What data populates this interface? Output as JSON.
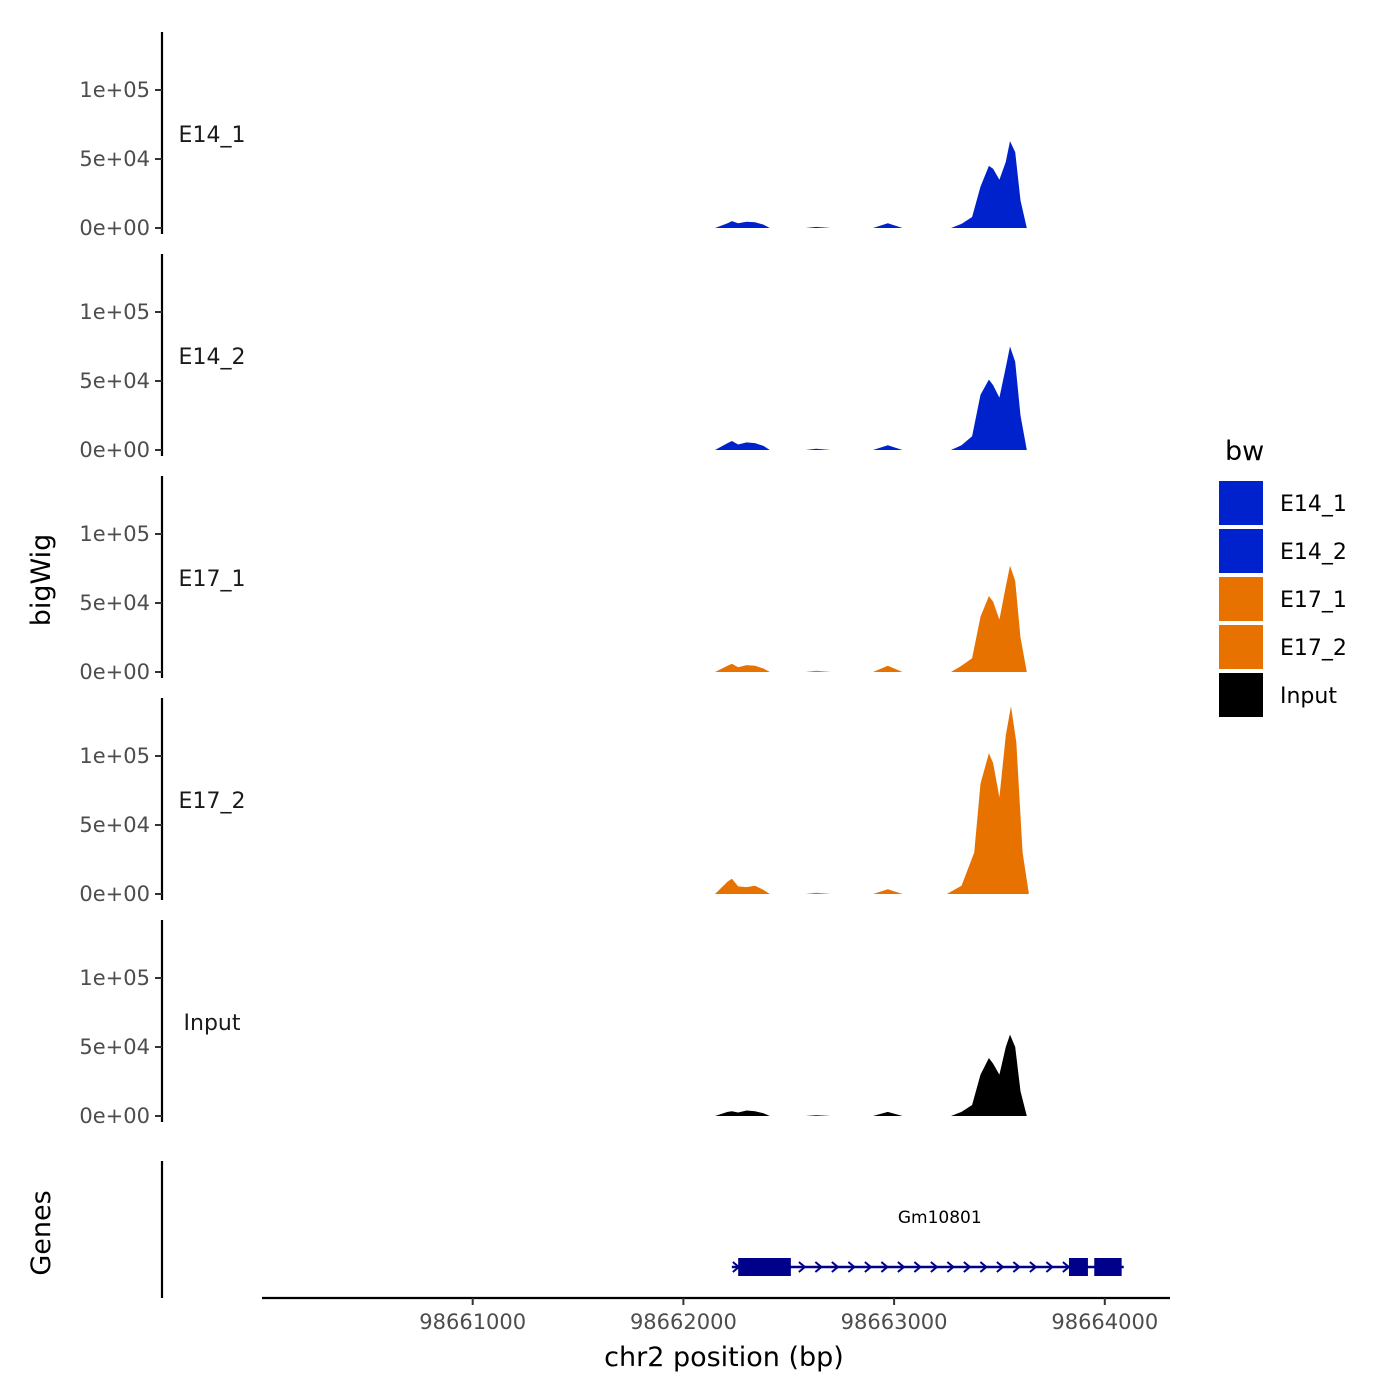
{
  "chart_data": {
    "type": "area",
    "title": "",
    "xlabel": "chr2 position (bp)",
    "ylabel": "bigWig",
    "genes_label": "Genes",
    "xlim": [
      98660000,
      98664300
    ],
    "x_ticks": [
      98661000,
      98662000,
      98663000,
      98664000
    ],
    "x_tick_labels": [
      "98661000",
      "98662000",
      "98663000",
      "98664000"
    ],
    "ylim": [
      0,
      140000
    ],
    "y_ticks": [
      0,
      50000,
      100000
    ],
    "y_tick_labels": [
      "0e+00",
      "5e+04",
      "1e+05"
    ],
    "legend": {
      "title": "bw",
      "entries": [
        {
          "label": "E14_1",
          "color": "#0022CC"
        },
        {
          "label": "E14_2",
          "color": "#0022CC"
        },
        {
          "label": "E17_1",
          "color": "#E87200"
        },
        {
          "label": "E17_2",
          "color": "#E87200"
        },
        {
          "label": "Input",
          "color": "#000000"
        }
      ]
    },
    "series": [
      {
        "name": "E14_1",
        "color": "#0022CC",
        "x": [
          98662150,
          98662210,
          98662230,
          98662260,
          98662300,
          98662340,
          98662380,
          98662410,
          98662580,
          98662630,
          98662700,
          98662900,
          98662970,
          98663040,
          98663270,
          98663320,
          98663370,
          98663410,
          98663450,
          98663470,
          98663500,
          98663530,
          98663550,
          98663575,
          98663600,
          98663630
        ],
        "y": [
          0,
          3500,
          5000,
          3500,
          4500,
          4200,
          2500,
          0,
          0,
          800,
          0,
          0,
          3500,
          0,
          0,
          3000,
          8000,
          30000,
          45000,
          43000,
          35000,
          48000,
          63000,
          55000,
          20000,
          0
        ]
      },
      {
        "name": "E14_2",
        "color": "#0022CC",
        "x": [
          98662150,
          98662210,
          98662230,
          98662260,
          98662300,
          98662340,
          98662380,
          98662410,
          98662580,
          98662630,
          98662700,
          98662900,
          98662970,
          98663040,
          98663270,
          98663320,
          98663370,
          98663410,
          98663450,
          98663470,
          98663500,
          98663530,
          98663550,
          98663575,
          98663600,
          98663630
        ],
        "y": [
          0,
          5000,
          6500,
          4000,
          5500,
          5000,
          3000,
          0,
          0,
          900,
          0,
          0,
          3500,
          0,
          0,
          3500,
          10000,
          40000,
          51000,
          47000,
          38000,
          60000,
          75000,
          64000,
          25000,
          0
        ]
      },
      {
        "name": "E17_1",
        "color": "#E87200",
        "x": [
          98662150,
          98662210,
          98662230,
          98662260,
          98662300,
          98662340,
          98662380,
          98662410,
          98662580,
          98662630,
          98662700,
          98662900,
          98662970,
          98663040,
          98663270,
          98663320,
          98663370,
          98663410,
          98663450,
          98663470,
          98663500,
          98663530,
          98663550,
          98663575,
          98663600,
          98663630
        ],
        "y": [
          0,
          4500,
          6000,
          3500,
          5000,
          4500,
          2500,
          0,
          0,
          900,
          0,
          0,
          4500,
          0,
          0,
          4500,
          10000,
          40000,
          55000,
          51000,
          38000,
          62000,
          77000,
          66000,
          25000,
          0
        ]
      },
      {
        "name": "E17_2",
        "color": "#E87200",
        "x": [
          98662150,
          98662210,
          98662230,
          98662260,
          98662300,
          98662340,
          98662380,
          98662410,
          98662580,
          98662630,
          98662700,
          98662900,
          98662970,
          98663040,
          98663250,
          98663320,
          98663380,
          98663410,
          98663450,
          98663470,
          98663500,
          98663530,
          98663555,
          98663580,
          98663610,
          98663640
        ],
        "y": [
          0,
          9000,
          11000,
          5500,
          5000,
          6000,
          3000,
          0,
          0,
          900,
          0,
          0,
          3500,
          0,
          0,
          6000,
          30000,
          80000,
          102000,
          95000,
          70000,
          115000,
          136000,
          110000,
          30000,
          0
        ]
      },
      {
        "name": "Input",
        "color": "#000000",
        "x": [
          98662150,
          98662210,
          98662230,
          98662260,
          98662300,
          98662340,
          98662380,
          98662410,
          98662580,
          98662630,
          98662700,
          98662900,
          98662970,
          98663040,
          98663270,
          98663320,
          98663370,
          98663410,
          98663450,
          98663470,
          98663500,
          98663530,
          98663550,
          98663575,
          98663600,
          98663630
        ],
        "y": [
          0,
          3000,
          3500,
          2500,
          4000,
          3500,
          2000,
          0,
          0,
          500,
          0,
          0,
          3000,
          0,
          0,
          3000,
          8000,
          30000,
          42000,
          38000,
          30000,
          50000,
          59000,
          50000,
          18000,
          0
        ]
      }
    ],
    "genes": [
      {
        "name": "Gm10801",
        "start": 98662230,
        "end": 98664090,
        "strand": "+",
        "color": "#00008B",
        "exons": [
          [
            98662260,
            98662510
          ],
          [
            98663830,
            98663920
          ],
          [
            98663950,
            98664080
          ]
        ]
      }
    ]
  }
}
